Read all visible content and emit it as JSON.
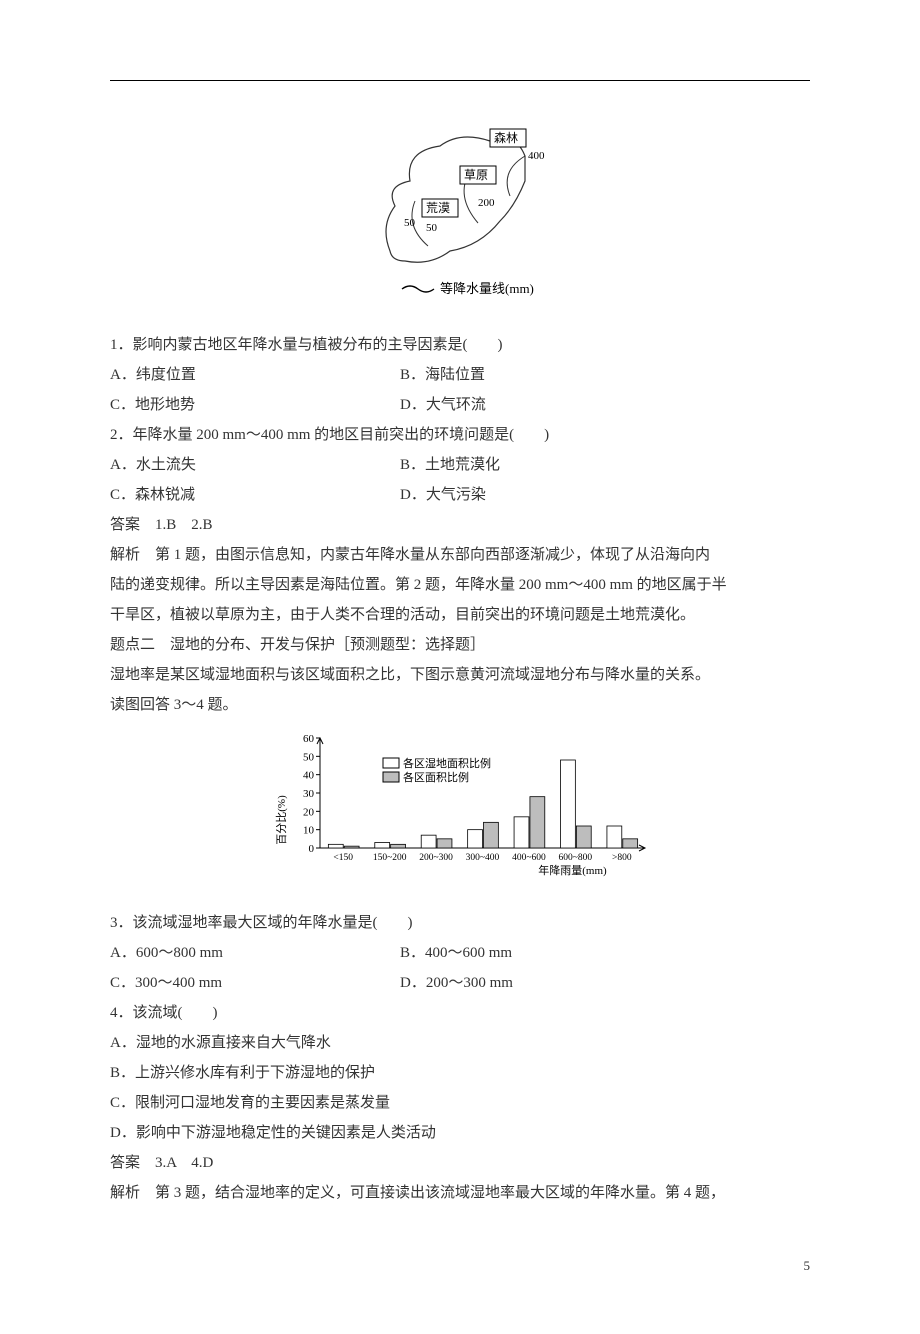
{
  "page_number": "5",
  "map": {
    "labels": {
      "forest": "森林",
      "grassland": "草原",
      "desert": "荒漠"
    },
    "isohyets": [
      "400",
      "200",
      "50",
      "50"
    ],
    "legend": "等降水量线(mm)",
    "box_stroke": "#000000",
    "outline_stroke": "#333333",
    "legend_font": 13
  },
  "q1": {
    "stem": "1．影响内蒙古地区年降水量与植被分布的主导因素是(　　)",
    "A": "A．纬度位置",
    "B": "B．海陆位置",
    "C": "C．地形地势",
    "D": "D．大气环流"
  },
  "q2": {
    "stem": "2．年降水量 200 mm～400 mm 的地区目前突出的环境问题是(　　)",
    "A": "A．水土流失",
    "B": "B．土地荒漠化",
    "C": "C．森林锐减",
    "D": "D．大气污染"
  },
  "ans12": "答案　1.B　2.B",
  "explain12_l1": "解析　第 1 题，由图示信息知，内蒙古年降水量从东部向西部逐渐减少，体现了从沿海向内",
  "explain12_l2": "陆的递变规律。所以主导因素是海陆位置。第 2 题，年降水量 200 mm～400 mm 的地区属于半",
  "explain12_l3": "干旱区，植被以草原为主，由于人类不合理的活动，目前突出的环境问题是土地荒漠化。",
  "topic2_title": "题点二　湿地的分布、开发与保护［预测题型：选择题］",
  "topic2_lead_l1": "湿地率是某区域湿地面积与该区域面积之比，下图示意黄河流域湿地分布与降水量的关系。",
  "topic2_lead_l2": "读图回答 3～4 题。",
  "chart": {
    "y_label": "百分比(%)",
    "x_label": "年降雨量(mm)",
    "legend1": "各区湿地面积比例",
    "legend2": "各区面积比例",
    "categories": [
      "<150",
      "150~200",
      "200~300",
      "300~400",
      "400~600",
      "600~800",
      ">800"
    ],
    "series_wetland": [
      2,
      3,
      7,
      10,
      17,
      48,
      12
    ],
    "series_area": [
      1,
      2,
      5,
      14,
      28,
      12,
      5
    ],
    "y_ticks": [
      0,
      10,
      20,
      30,
      40,
      50,
      60
    ],
    "bar_fill_wetland": "#ffffff",
    "bar_fill_area": "#bdbdbd",
    "axis_color": "#000000",
    "font_size": 11
  },
  "q3": {
    "stem": "3．该流域湿地率最大区域的年降水量是(　　)",
    "A": "A．600～800 mm",
    "B": "B．400～600 mm",
    "C": "C．300～400 mm",
    "D": "D．200～300 mm"
  },
  "q4": {
    "stem": "4．该流域(　　)",
    "A": "A．湿地的水源直接来自大气降水",
    "B": "B．上游兴修水库有利于下游湿地的保护",
    "C": "C．限制河口湿地发育的主要因素是蒸发量",
    "D": "D．影响中下游湿地稳定性的关键因素是人类活动"
  },
  "ans34": "答案　3.A　4.D",
  "explain34": "解析　第 3 题，结合湿地率的定义，可直接读出该流域湿地率最大区域的年降水量。第 4 题，"
}
